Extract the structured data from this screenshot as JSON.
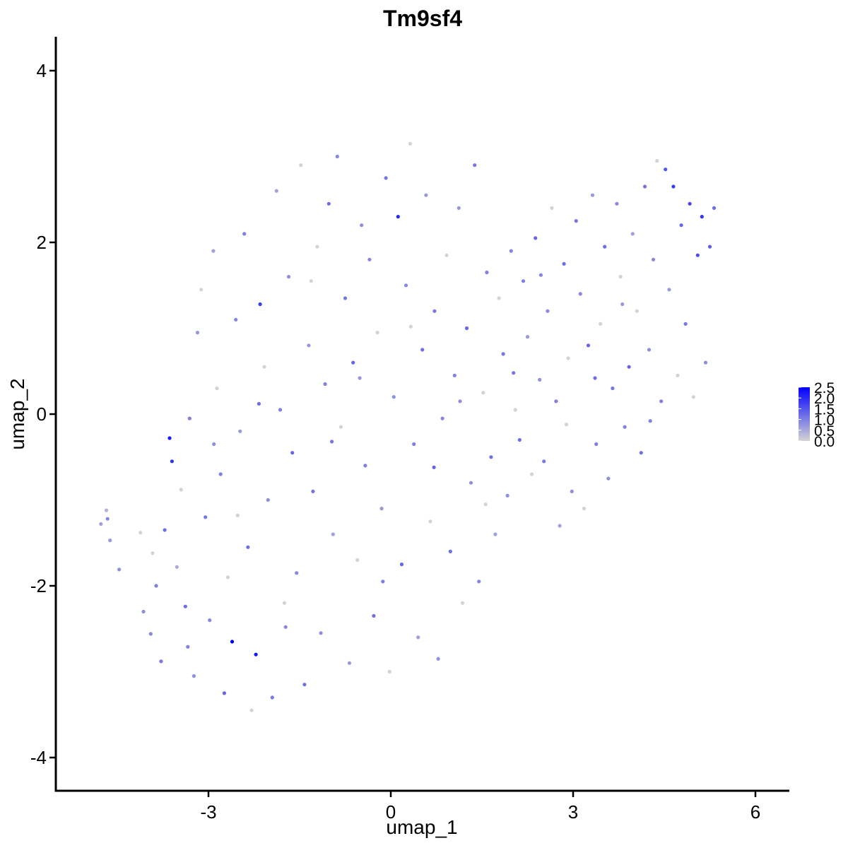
{
  "chart_data": {
    "type": "scatter",
    "title": "Tm9sf4",
    "xlabel": "umap_1",
    "ylabel": "umap_2",
    "xlim": [
      -5.5,
      6.5
    ],
    "ylim": [
      -4.3,
      4.4
    ],
    "x_ticks": [
      -3,
      0,
      3,
      6
    ],
    "x_tick_labels": [
      "-3",
      "0",
      "3",
      "6"
    ],
    "y_ticks": [
      -4,
      -2,
      0,
      2,
      4
    ],
    "y_tick_labels": [
      "-4",
      "-2",
      "0",
      "2",
      "4"
    ],
    "grid": false,
    "legend": {
      "placement": "right",
      "type": "colorbar",
      "min": 0.0,
      "max": 2.5,
      "ticks": [
        0.0,
        0.5,
        1.0,
        1.5,
        2.0,
        2.5
      ],
      "tick_labels": [
        "0.0",
        "0.5",
        "1.0",
        "1.5",
        "2.0",
        "2.5"
      ],
      "low_color": "#d3d3d3",
      "high_color": "#0000ff"
    },
    "points": [
      {
        "x": -4.77,
        "y": -1.28,
        "v": 0.6
      },
      {
        "x": -4.68,
        "y": -1.12,
        "v": 0.4
      },
      {
        "x": -4.66,
        "y": -1.22,
        "v": 0.9
      },
      {
        "x": -4.62,
        "y": -1.47,
        "v": 0.7
      },
      {
        "x": -4.47,
        "y": -1.81,
        "v": 0.8
      },
      {
        "x": -4.12,
        "y": -1.38,
        "v": 0.0
      },
      {
        "x": -4.07,
        "y": -2.3,
        "v": 0.8
      },
      {
        "x": -3.95,
        "y": -2.56,
        "v": 0.9
      },
      {
        "x": -3.86,
        "y": -2.0,
        "v": 1.0
      },
      {
        "x": -3.78,
        "y": -2.88,
        "v": 1.1
      },
      {
        "x": -3.72,
        "y": -1.35,
        "v": 1.2
      },
      {
        "x": -3.64,
        "y": -0.28,
        "v": 2.2
      },
      {
        "x": -3.6,
        "y": -0.55,
        "v": 1.9
      },
      {
        "x": -3.52,
        "y": -1.78,
        "v": 0.5
      },
      {
        "x": -3.45,
        "y": -0.88,
        "v": 0.0
      },
      {
        "x": -3.38,
        "y": -2.24,
        "v": 1.2
      },
      {
        "x": -3.31,
        "y": -0.05,
        "v": 1.0
      },
      {
        "x": -3.24,
        "y": -3.05,
        "v": 0.8
      },
      {
        "x": -3.18,
        "y": 0.95,
        "v": 0.7
      },
      {
        "x": -3.12,
        "y": 1.45,
        "v": 0.0
      },
      {
        "x": -3.05,
        "y": -1.2,
        "v": 1.1
      },
      {
        "x": -2.98,
        "y": -2.4,
        "v": 0.9
      },
      {
        "x": -2.92,
        "y": 1.9,
        "v": 0.6
      },
      {
        "x": -2.86,
        "y": 0.3,
        "v": 0.0
      },
      {
        "x": -2.8,
        "y": -0.7,
        "v": 1.0
      },
      {
        "x": -2.74,
        "y": -3.25,
        "v": 1.3
      },
      {
        "x": -2.68,
        "y": -1.9,
        "v": 0.0
      },
      {
        "x": -2.61,
        "y": -2.65,
        "v": 2.5
      },
      {
        "x": -2.55,
        "y": 1.1,
        "v": 0.9
      },
      {
        "x": -2.48,
        "y": -0.2,
        "v": 0.7
      },
      {
        "x": -2.41,
        "y": 2.1,
        "v": 1.0
      },
      {
        "x": -2.35,
        "y": -1.55,
        "v": 1.2
      },
      {
        "x": -2.29,
        "y": -3.45,
        "v": 0.0
      },
      {
        "x": -2.22,
        "y": -2.8,
        "v": 2.3
      },
      {
        "x": -2.15,
        "y": 1.28,
        "v": 1.8
      },
      {
        "x": -2.08,
        "y": 0.55,
        "v": 0.0
      },
      {
        "x": -2.02,
        "y": -1.0,
        "v": 0.8
      },
      {
        "x": -1.95,
        "y": -3.3,
        "v": 1.1
      },
      {
        "x": -1.88,
        "y": 2.6,
        "v": 0.6
      },
      {
        "x": -1.82,
        "y": 0.05,
        "v": 1.0
      },
      {
        "x": -1.75,
        "y": -2.2,
        "v": 0.0
      },
      {
        "x": -1.68,
        "y": 1.6,
        "v": 0.8
      },
      {
        "x": -1.62,
        "y": -0.45,
        "v": 1.3
      },
      {
        "x": -1.55,
        "y": -1.85,
        "v": 0.9
      },
      {
        "x": -1.48,
        "y": 2.9,
        "v": 0.0
      },
      {
        "x": -1.42,
        "y": -3.15,
        "v": 1.2
      },
      {
        "x": -1.35,
        "y": 0.8,
        "v": 0.7
      },
      {
        "x": -1.28,
        "y": -0.9,
        "v": 1.1
      },
      {
        "x": -1.21,
        "y": 1.95,
        "v": 0.0
      },
      {
        "x": -1.15,
        "y": -2.55,
        "v": 0.8
      },
      {
        "x": -1.08,
        "y": 0.35,
        "v": 1.0
      },
      {
        "x": -1.02,
        "y": 2.45,
        "v": 1.2
      },
      {
        "x": -0.95,
        "y": -1.4,
        "v": 0.6
      },
      {
        "x": -0.88,
        "y": 3.0,
        "v": 0.9
      },
      {
        "x": -0.82,
        "y": -0.15,
        "v": 0.0
      },
      {
        "x": -0.75,
        "y": 1.35,
        "v": 1.1
      },
      {
        "x": -0.68,
        "y": -2.9,
        "v": 0.7
      },
      {
        "x": -0.62,
        "y": 0.6,
        "v": 1.3
      },
      {
        "x": -0.55,
        "y": -1.7,
        "v": 0.0
      },
      {
        "x": -0.48,
        "y": 2.2,
        "v": 0.8
      },
      {
        "x": -0.42,
        "y": -0.6,
        "v": 1.0
      },
      {
        "x": -0.35,
        "y": 1.8,
        "v": 0.9
      },
      {
        "x": -0.28,
        "y": -2.35,
        "v": 1.2
      },
      {
        "x": -0.22,
        "y": 0.95,
        "v": 0.0
      },
      {
        "x": -0.15,
        "y": -1.1,
        "v": 0.7
      },
      {
        "x": -0.08,
        "y": 2.75,
        "v": 1.1
      },
      {
        "x": -0.02,
        "y": -3.0,
        "v": 0.0
      },
      {
        "x": 0.05,
        "y": 0.2,
        "v": 0.8
      },
      {
        "x": 0.12,
        "y": 2.3,
        "v": 2.0
      },
      {
        "x": 0.18,
        "y": -1.75,
        "v": 1.3
      },
      {
        "x": 0.25,
        "y": 1.5,
        "v": 0.9
      },
      {
        "x": 0.32,
        "y": 3.15,
        "v": 0.0
      },
      {
        "x": 0.38,
        "y": -0.35,
        "v": 1.0
      },
      {
        "x": 0.45,
        "y": -2.6,
        "v": 0.6
      },
      {
        "x": 0.52,
        "y": 0.75,
        "v": 1.2
      },
      {
        "x": 0.58,
        "y": 2.55,
        "v": 0.7
      },
      {
        "x": 0.65,
        "y": -1.25,
        "v": 0.0
      },
      {
        "x": 0.72,
        "y": 1.2,
        "v": 1.1
      },
      {
        "x": 0.78,
        "y": -2.85,
        "v": 0.8
      },
      {
        "x": 0.85,
        "y": -0.05,
        "v": 0.9
      },
      {
        "x": 0.92,
        "y": 1.85,
        "v": 0.0
      },
      {
        "x": 0.98,
        "y": -1.6,
        "v": 1.2
      },
      {
        "x": 1.05,
        "y": 0.45,
        "v": 1.0
      },
      {
        "x": 1.12,
        "y": 2.4,
        "v": 0.7
      },
      {
        "x": 1.18,
        "y": -2.2,
        "v": 0.0
      },
      {
        "x": 1.25,
        "y": 1.0,
        "v": 1.3
      },
      {
        "x": 1.32,
        "y": -0.8,
        "v": 0.8
      },
      {
        "x": 1.38,
        "y": 2.9,
        "v": 1.1
      },
      {
        "x": 1.45,
        "y": -1.95,
        "v": 0.9
      },
      {
        "x": 1.52,
        "y": 0.25,
        "v": 0.0
      },
      {
        "x": 1.58,
        "y": 1.65,
        "v": 1.0
      },
      {
        "x": 1.65,
        "y": -0.5,
        "v": 1.2
      },
      {
        "x": 1.72,
        "y": -1.4,
        "v": 0.6
      },
      {
        "x": 1.78,
        "y": 1.35,
        "v": 0.0
      },
      {
        "x": 1.85,
        "y": 0.7,
        "v": 1.1
      },
      {
        "x": 1.92,
        "y": -0.95,
        "v": 0.8
      },
      {
        "x": 1.98,
        "y": 1.9,
        "v": 0.9
      },
      {
        "x": 2.05,
        "y": 0.05,
        "v": 0.0
      },
      {
        "x": 2.12,
        "y": -0.3,
        "v": 1.2
      },
      {
        "x": 2.18,
        "y": 1.55,
        "v": 1.0
      },
      {
        "x": 2.25,
        "y": 0.9,
        "v": 0.7
      },
      {
        "x": 2.32,
        "y": -0.7,
        "v": 0.0
      },
      {
        "x": 2.38,
        "y": 2.05,
        "v": 1.3
      },
      {
        "x": 2.45,
        "y": 0.4,
        "v": 0.8
      },
      {
        "x": 2.52,
        "y": -0.55,
        "v": 1.1
      },
      {
        "x": 2.58,
        "y": 1.2,
        "v": 0.9
      },
      {
        "x": 2.65,
        "y": 2.4,
        "v": 0.0
      },
      {
        "x": 2.72,
        "y": 0.15,
        "v": 1.0
      },
      {
        "x": 2.78,
        "y": -1.3,
        "v": 0.6
      },
      {
        "x": 2.85,
        "y": 1.75,
        "v": 1.2
      },
      {
        "x": 2.92,
        "y": 0.65,
        "v": 0.0
      },
      {
        "x": 2.98,
        "y": -0.9,
        "v": 0.8
      },
      {
        "x": 3.05,
        "y": 2.25,
        "v": 1.1
      },
      {
        "x": 3.12,
        "y": 1.4,
        "v": 0.9
      },
      {
        "x": 3.18,
        "y": -1.1,
        "v": 0.0
      },
      {
        "x": 3.25,
        "y": 0.8,
        "v": 1.3
      },
      {
        "x": 3.32,
        "y": 2.55,
        "v": 0.7
      },
      {
        "x": 3.38,
        "y": -0.35,
        "v": 1.0
      },
      {
        "x": 3.45,
        "y": 1.05,
        "v": 0.0
      },
      {
        "x": 3.52,
        "y": 1.95,
        "v": 1.2
      },
      {
        "x": 3.58,
        "y": -0.75,
        "v": 0.8
      },
      {
        "x": 3.65,
        "y": 0.3,
        "v": 1.1
      },
      {
        "x": 3.72,
        "y": 2.45,
        "v": 0.9
      },
      {
        "x": 3.78,
        "y": 1.6,
        "v": 0.0
      },
      {
        "x": 3.85,
        "y": -0.15,
        "v": 1.0
      },
      {
        "x": 3.92,
        "y": 0.55,
        "v": 1.3
      },
      {
        "x": 3.98,
        "y": 2.1,
        "v": 0.6
      },
      {
        "x": 4.05,
        "y": 1.2,
        "v": 0.0
      },
      {
        "x": 4.12,
        "y": -0.45,
        "v": 1.2
      },
      {
        "x": 4.18,
        "y": 2.65,
        "v": 1.1
      },
      {
        "x": 4.25,
        "y": 0.75,
        "v": 0.8
      },
      {
        "x": 4.32,
        "y": 1.8,
        "v": 0.9
      },
      {
        "x": 4.38,
        "y": 2.95,
        "v": 0.0
      },
      {
        "x": 4.45,
        "y": 0.15,
        "v": 1.0
      },
      {
        "x": 4.52,
        "y": 2.85,
        "v": 1.5
      },
      {
        "x": 4.58,
        "y": 1.45,
        "v": 0.7
      },
      {
        "x": 4.65,
        "y": 2.65,
        "v": 1.8
      },
      {
        "x": 4.72,
        "y": 0.45,
        "v": 0.0
      },
      {
        "x": 4.78,
        "y": 2.2,
        "v": 1.3
      },
      {
        "x": 4.85,
        "y": 1.05,
        "v": 1.1
      },
      {
        "x": 4.92,
        "y": 2.45,
        "v": 1.7
      },
      {
        "x": 4.98,
        "y": 0.2,
        "v": 0.0
      },
      {
        "x": 5.05,
        "y": 1.85,
        "v": 1.6
      },
      {
        "x": 5.12,
        "y": 2.3,
        "v": 1.9
      },
      {
        "x": 5.18,
        "y": 0.6,
        "v": 0.8
      },
      {
        "x": 5.25,
        "y": 1.95,
        "v": 1.4
      },
      {
        "x": 5.32,
        "y": 2.4,
        "v": 1.2
      },
      {
        "x": -3.92,
        "y": -1.62,
        "v": 0.0
      },
      {
        "x": -3.34,
        "y": -2.71,
        "v": 1.0
      },
      {
        "x": -2.91,
        "y": -0.35,
        "v": 0.8
      },
      {
        "x": -2.52,
        "y": -1.18,
        "v": 0.0
      },
      {
        "x": -2.17,
        "y": 0.12,
        "v": 1.2
      },
      {
        "x": -1.73,
        "y": -2.48,
        "v": 0.9
      },
      {
        "x": -1.31,
        "y": 1.55,
        "v": 0.0
      },
      {
        "x": -0.97,
        "y": -0.32,
        "v": 1.1
      },
      {
        "x": -0.51,
        "y": 0.42,
        "v": 0.7
      },
      {
        "x": -0.13,
        "y": -1.95,
        "v": 1.0
      },
      {
        "x": 0.33,
        "y": 1.02,
        "v": 0.0
      },
      {
        "x": 0.71,
        "y": -0.62,
        "v": 1.3
      },
      {
        "x": 1.14,
        "y": 0.15,
        "v": 0.8
      },
      {
        "x": 1.56,
        "y": -1.05,
        "v": 0.0
      },
      {
        "x": 2.02,
        "y": 0.48,
        "v": 1.1
      },
      {
        "x": 2.47,
        "y": 1.62,
        "v": 0.9
      },
      {
        "x": 2.89,
        "y": -0.12,
        "v": 0.0
      },
      {
        "x": 3.36,
        "y": 0.42,
        "v": 1.2
      },
      {
        "x": 3.81,
        "y": 1.28,
        "v": 0.7
      },
      {
        "x": 4.27,
        "y": -0.08,
        "v": 1.0
      }
    ]
  }
}
